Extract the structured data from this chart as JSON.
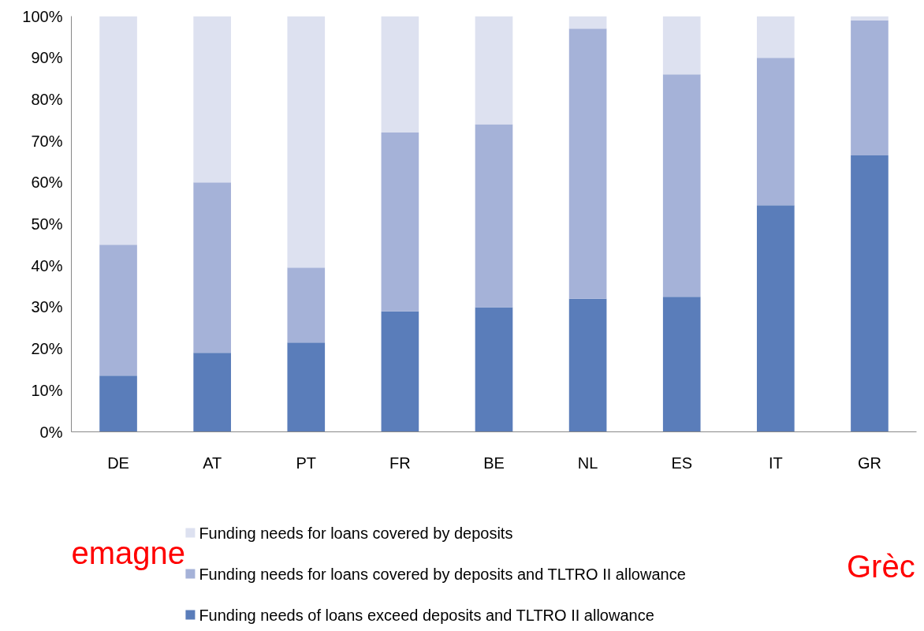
{
  "chart_data": {
    "type": "bar",
    "stacked": true,
    "categories": [
      "DE",
      "AT",
      "PT",
      "FR",
      "BE",
      "NL",
      "ES",
      "IT",
      "GR"
    ],
    "series": [
      {
        "name": "Funding needs of loans exceed deposits and TLTRO II allowance",
        "color": "#5a7dba",
        "values": [
          13.5,
          19,
          21.5,
          29,
          30,
          32,
          32.5,
          54.5,
          66.5
        ]
      },
      {
        "name": "Funding needs for loans covered by deposits and TLTRO II allowance",
        "color": "#a5b2d8",
        "values": [
          31.5,
          41,
          18,
          43,
          44,
          65,
          53.5,
          35.5,
          32.5
        ]
      },
      {
        "name": "Funding needs for loans covered by deposits",
        "color": "#dde1f0",
        "values": [
          55,
          40,
          60.5,
          28,
          26,
          3,
          14,
          10,
          1
        ]
      }
    ],
    "ylim": [
      0,
      100
    ],
    "yticks": [
      {
        "value": 0,
        "label": "0%"
      },
      {
        "value": 10,
        "label": "10%"
      },
      {
        "value": 20,
        "label": "20%"
      },
      {
        "value": 30,
        "label": "30%"
      },
      {
        "value": 40,
        "label": "40%"
      },
      {
        "value": 50,
        "label": "50%"
      },
      {
        "value": 60,
        "label": "60%"
      },
      {
        "value": 70,
        "label": "70%"
      },
      {
        "value": 80,
        "label": "80%"
      },
      {
        "value": 90,
        "label": "90%"
      },
      {
        "value": 100,
        "label": "100%"
      }
    ],
    "grid": false,
    "legend": "bottom",
    "annotations": [
      "emagne",
      "Grèc"
    ]
  }
}
